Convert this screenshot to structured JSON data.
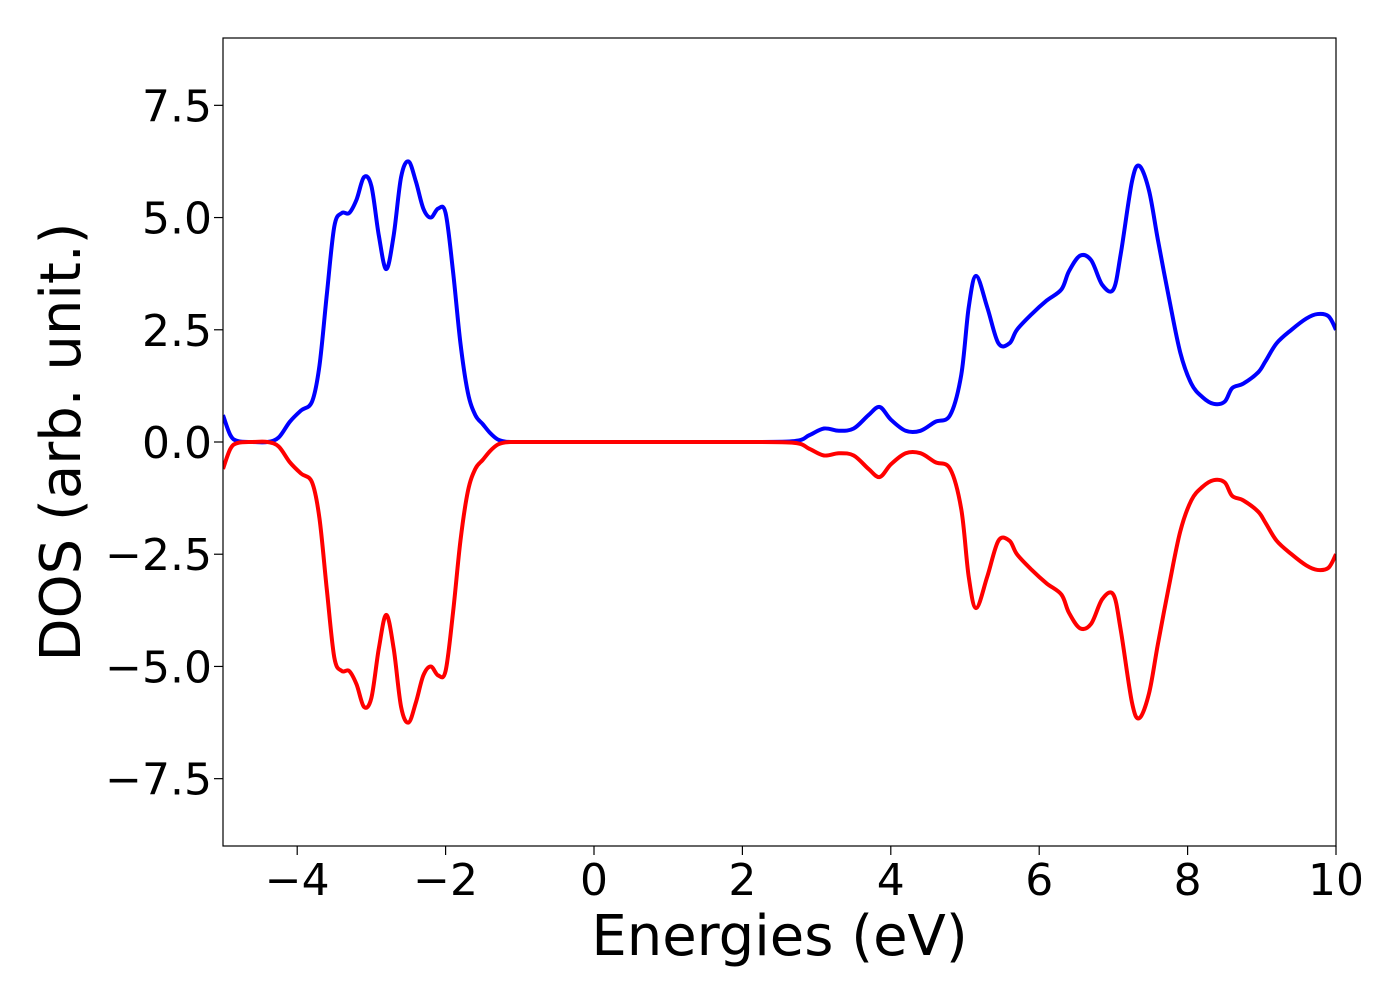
{
  "chart_data": {
    "type": "line",
    "title": "",
    "xlabel": "Energies (eV)",
    "ylabel": "DOS (arb. unit.)",
    "xlim": [
      -5,
      10
    ],
    "ylim": [
      -9,
      9
    ],
    "grid": false,
    "x_ticks": [
      -4,
      -2,
      0,
      2,
      4,
      6,
      8,
      10
    ],
    "x_tick_labels": [
      "−4",
      "−2",
      "0",
      "2",
      "4",
      "6",
      "8",
      "10"
    ],
    "y_ticks": [
      7.5,
      5.0,
      2.5,
      0.0,
      -2.5,
      -5.0,
      -7.5
    ],
    "y_tick_labels": [
      "7.5",
      "5.0",
      "2.5",
      "0.0",
      "−2.5",
      "−5.0",
      "−7.5"
    ],
    "series": [
      {
        "color": "#0000ff",
        "x": [
          -5.0,
          -4.9,
          -4.8,
          -4.6,
          -4.4,
          -4.25,
          -4.1,
          -3.95,
          -3.8,
          -3.7,
          -3.6,
          -3.5,
          -3.4,
          -3.3,
          -3.2,
          -3.1,
          -3.0,
          -2.9,
          -2.8,
          -2.7,
          -2.6,
          -2.5,
          -2.4,
          -2.3,
          -2.2,
          -2.1,
          -2.0,
          -1.9,
          -1.8,
          -1.7,
          -1.6,
          -1.5,
          -1.4,
          -1.3,
          -1.2,
          -1.1,
          -1.0,
          -0.9,
          -0.8,
          -0.7,
          -0.6,
          -0.5,
          0.0,
          1.0,
          2.0,
          2.7,
          2.9,
          3.1,
          3.3,
          3.5,
          3.7,
          3.85,
          4.0,
          4.2,
          4.4,
          4.6,
          4.8,
          4.95,
          5.05,
          5.15,
          5.3,
          5.45,
          5.6,
          5.7,
          5.9,
          6.1,
          6.3,
          6.4,
          6.55,
          6.7,
          6.85,
          7.0,
          7.1,
          7.25,
          7.35,
          7.48,
          7.6,
          7.75,
          7.9,
          8.05,
          8.2,
          8.35,
          8.5,
          8.6,
          8.75,
          8.95,
          9.05,
          9.2,
          9.4,
          9.6,
          9.75,
          9.9,
          10.0
        ],
        "y": [
          0.6,
          0.15,
          0.02,
          0.0,
          0.0,
          0.1,
          0.45,
          0.7,
          0.9,
          1.7,
          3.3,
          4.8,
          5.1,
          5.1,
          5.4,
          5.9,
          5.7,
          4.6,
          3.85,
          4.6,
          5.9,
          6.25,
          5.8,
          5.2,
          5.0,
          5.2,
          5.1,
          3.8,
          2.2,
          1.1,
          0.6,
          0.4,
          0.2,
          0.06,
          0.01,
          0.0,
          0.0,
          0.0,
          0.0,
          0.0,
          0.0,
          0.0,
          0.0,
          0.0,
          0.0,
          0.02,
          0.15,
          0.3,
          0.25,
          0.3,
          0.6,
          0.78,
          0.5,
          0.25,
          0.25,
          0.45,
          0.6,
          1.5,
          3.0,
          3.7,
          3.0,
          2.2,
          2.2,
          2.5,
          2.85,
          3.15,
          3.4,
          3.8,
          4.15,
          4.05,
          3.5,
          3.4,
          4.2,
          5.8,
          6.15,
          5.6,
          4.5,
          3.2,
          2.0,
          1.3,
          1.0,
          0.85,
          0.9,
          1.2,
          1.3,
          1.55,
          1.8,
          2.2,
          2.5,
          2.75,
          2.85,
          2.8,
          2.5
        ]
      },
      {
        "color": "#ff0000",
        "x": [
          -5.0,
          -4.9,
          -4.8,
          -4.6,
          -4.4,
          -4.25,
          -4.1,
          -3.95,
          -3.8,
          -3.7,
          -3.6,
          -3.5,
          -3.4,
          -3.3,
          -3.2,
          -3.1,
          -3.0,
          -2.9,
          -2.8,
          -2.7,
          -2.6,
          -2.5,
          -2.4,
          -2.3,
          -2.2,
          -2.1,
          -2.0,
          -1.9,
          -1.8,
          -1.7,
          -1.6,
          -1.5,
          -1.4,
          -1.3,
          -1.2,
          -1.1,
          -1.0,
          -0.9,
          -0.8,
          -0.7,
          -0.6,
          -0.5,
          0.0,
          1.0,
          2.0,
          2.7,
          2.9,
          3.1,
          3.3,
          3.5,
          3.7,
          3.85,
          4.0,
          4.2,
          4.4,
          4.6,
          4.8,
          4.95,
          5.05,
          5.15,
          5.3,
          5.45,
          5.6,
          5.7,
          5.9,
          6.1,
          6.3,
          6.4,
          6.55,
          6.7,
          6.85,
          7.0,
          7.1,
          7.25,
          7.35,
          7.48,
          7.6,
          7.75,
          7.9,
          8.05,
          8.2,
          8.35,
          8.5,
          8.6,
          8.75,
          8.95,
          9.05,
          9.2,
          9.4,
          9.6,
          9.75,
          9.9,
          10.0
        ],
        "y": [
          -0.6,
          -0.15,
          -0.02,
          0.0,
          0.0,
          -0.1,
          -0.45,
          -0.7,
          -0.9,
          -1.7,
          -3.3,
          -4.8,
          -5.1,
          -5.1,
          -5.4,
          -5.9,
          -5.7,
          -4.6,
          -3.85,
          -4.6,
          -5.9,
          -6.25,
          -5.8,
          -5.2,
          -5.0,
          -5.2,
          -5.1,
          -3.8,
          -2.2,
          -1.1,
          -0.6,
          -0.4,
          -0.2,
          -0.06,
          -0.01,
          0.0,
          0.0,
          0.0,
          0.0,
          0.0,
          0.0,
          0.0,
          0.0,
          0.0,
          0.0,
          -0.02,
          -0.15,
          -0.3,
          -0.25,
          -0.3,
          -0.6,
          -0.78,
          -0.5,
          -0.25,
          -0.25,
          -0.45,
          -0.6,
          -1.5,
          -3.0,
          -3.7,
          -3.0,
          -2.2,
          -2.2,
          -2.5,
          -2.85,
          -3.15,
          -3.4,
          -3.8,
          -4.15,
          -4.05,
          -3.5,
          -3.4,
          -4.2,
          -5.8,
          -6.15,
          -5.6,
          -4.5,
          -3.2,
          -2.0,
          -1.3,
          -1.0,
          -0.85,
          -0.9,
          -1.2,
          -1.3,
          -1.55,
          -1.8,
          -2.2,
          -2.5,
          -2.75,
          -2.85,
          -2.8,
          -2.5
        ]
      }
    ]
  }
}
